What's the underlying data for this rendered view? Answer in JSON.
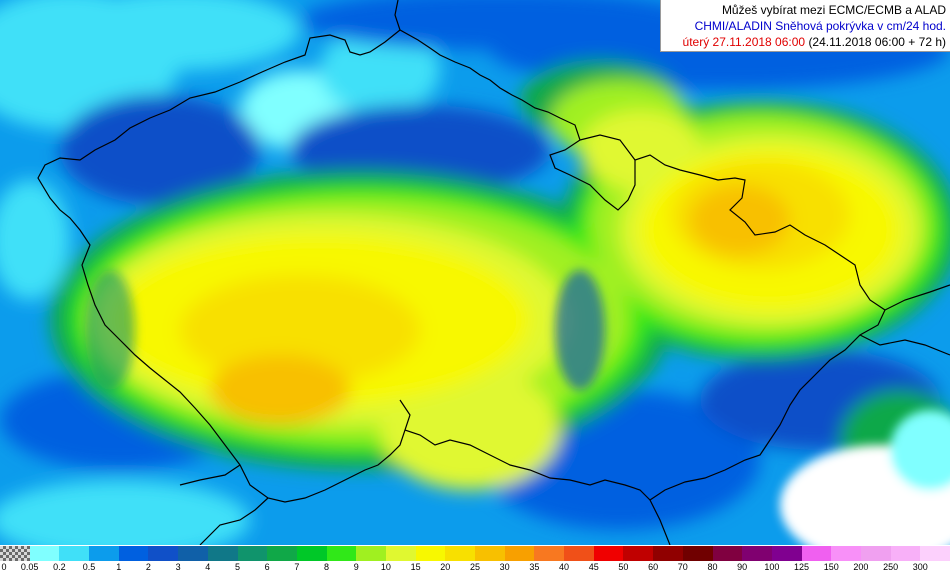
{
  "header": {
    "line1": "Můžeš vybírat mezi ECMC/ECMB a ALAD",
    "line2": "CHMI/ALADIN Sněhová pokrývka v cm/24 hod.",
    "line3_date": "úterý 27.11.2018 06:00",
    "line3_range": "(24.11.2018 06:00 + 72 h)"
  },
  "legend": {
    "colors": [
      "nodata",
      "#80ffff",
      "#40e0f8",
      "#0c9cec",
      "#0060e0",
      "#1050c8",
      "#1060a8",
      "#107888",
      "#10946c",
      "#10a848",
      "#00c828",
      "#30e818",
      "#a0f020",
      "#e0f830",
      "#f8f800",
      "#f8e000",
      "#f8c000",
      "#f8a000",
      "#f87820",
      "#f05018",
      "#f00000",
      "#c00000",
      "#900000",
      "#700000",
      "#800040",
      "#800070",
      "#800090",
      "#f060f0",
      "#f890f8",
      "#f0a0f0",
      "#f8b0f8",
      "#fcd0fc"
    ],
    "ticks": [
      "0",
      "0.05",
      "0.2",
      "0.5",
      "1",
      "2",
      "3",
      "4",
      "5",
      "6",
      "7",
      "8",
      "9",
      "10",
      "15",
      "20",
      "25",
      "30",
      "35",
      "40",
      "45",
      "50",
      "60",
      "70",
      "80",
      "90",
      "100",
      "125",
      "150",
      "200",
      "250",
      "300"
    ]
  }
}
